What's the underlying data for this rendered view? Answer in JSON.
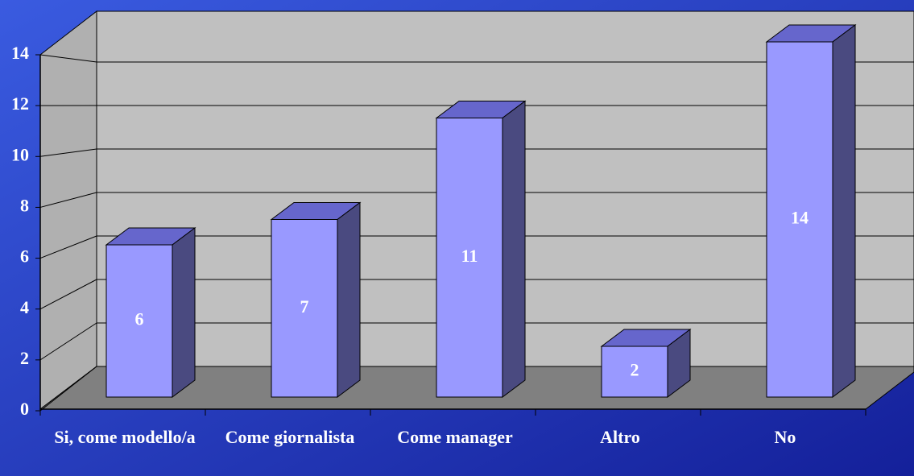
{
  "chart_data": {
    "type": "bar3d",
    "categories": [
      "Si, come modello/a",
      "Come giornalista",
      "Come manager",
      "Altro",
      "No"
    ],
    "values": [
      6,
      7,
      11,
      2,
      14
    ],
    "color": "#9999ff",
    "ylim": [
      0,
      14
    ],
    "yticks": [
      0,
      2,
      4,
      6,
      8,
      10,
      12,
      14
    ],
    "grid": true
  }
}
